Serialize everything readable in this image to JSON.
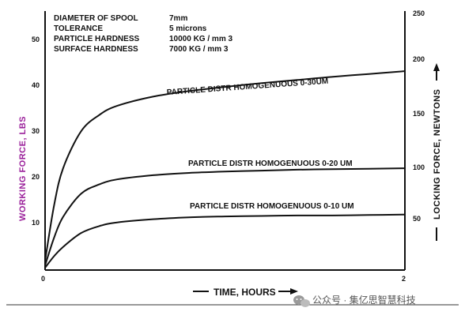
{
  "chart_data": {
    "type": "line",
    "specs": [
      {
        "label": "DIAMETER OF SPOOL",
        "value": "7mm"
      },
      {
        "label": "TOLERANCE",
        "value": "5 microns"
      },
      {
        "label": "PARTICLE HARDNESS",
        "value": "10000 KG / mm 3"
      },
      {
        "label": "SURFACE HARDNESS",
        "value": "7000 KG / mm 3"
      }
    ],
    "xlabel": "TIME, HOURS",
    "xlim": [
      0,
      2
    ],
    "x_ticks": [
      "0",
      "2"
    ],
    "ylabel_left": "WORKING FORCE, LBS",
    "ylim_left": [
      0,
      56
    ],
    "y_ticks_left": [
      "10",
      "20",
      "30",
      "40",
      "50"
    ],
    "ylabel_right": "LOCKING FORCE, NEWTONS",
    "y_ticks_right": [
      "50",
      "100",
      "150",
      "200",
      "250"
    ],
    "series": [
      {
        "name": "PARTICLE DISTR HOMOGENUOUS 0-30UM",
        "x": [
          0,
          0.05,
          0.1,
          0.2,
          0.3,
          0.4,
          0.6,
          0.8,
          1.0,
          1.2,
          1.4,
          1.6,
          1.8,
          2.0
        ],
        "y": [
          2,
          14,
          22,
          30,
          33.5,
          35.5,
          37.5,
          38.7,
          39.6,
          40.4,
          41.1,
          41.8,
          42.4,
          43
        ]
      },
      {
        "name": "PARTICLE DISTR HOMOGENUOUS 0-20 UM",
        "x": [
          0,
          0.05,
          0.1,
          0.2,
          0.3,
          0.4,
          0.6,
          0.8,
          1.0,
          1.2,
          1.4,
          1.6,
          1.8,
          2.0
        ],
        "y": [
          1,
          7,
          11.5,
          16.5,
          18.5,
          19.6,
          20.5,
          21.0,
          21.3,
          21.5,
          21.7,
          21.8,
          21.9,
          22
        ]
      },
      {
        "name": "PARTICLE DISTR HOMOGENUOUS 0-10 UM",
        "x": [
          0,
          0.05,
          0.1,
          0.2,
          0.3,
          0.4,
          0.6,
          0.8,
          1.0,
          1.2,
          1.4,
          1.6,
          1.8,
          2.0
        ],
        "y": [
          0.5,
          3,
          5,
          8,
          9.5,
          10.3,
          11.0,
          11.4,
          11.6,
          11.7,
          11.8,
          11.8,
          11.9,
          12
        ]
      }
    ],
    "grid": false
  },
  "watermark": "公众号 · 集亿思智慧科技",
  "colors": {
    "line": "#111111",
    "left_axis_label": "#9a1f9a",
    "watermark": "#555555"
  },
  "watermark_icon": "wechat-icon"
}
